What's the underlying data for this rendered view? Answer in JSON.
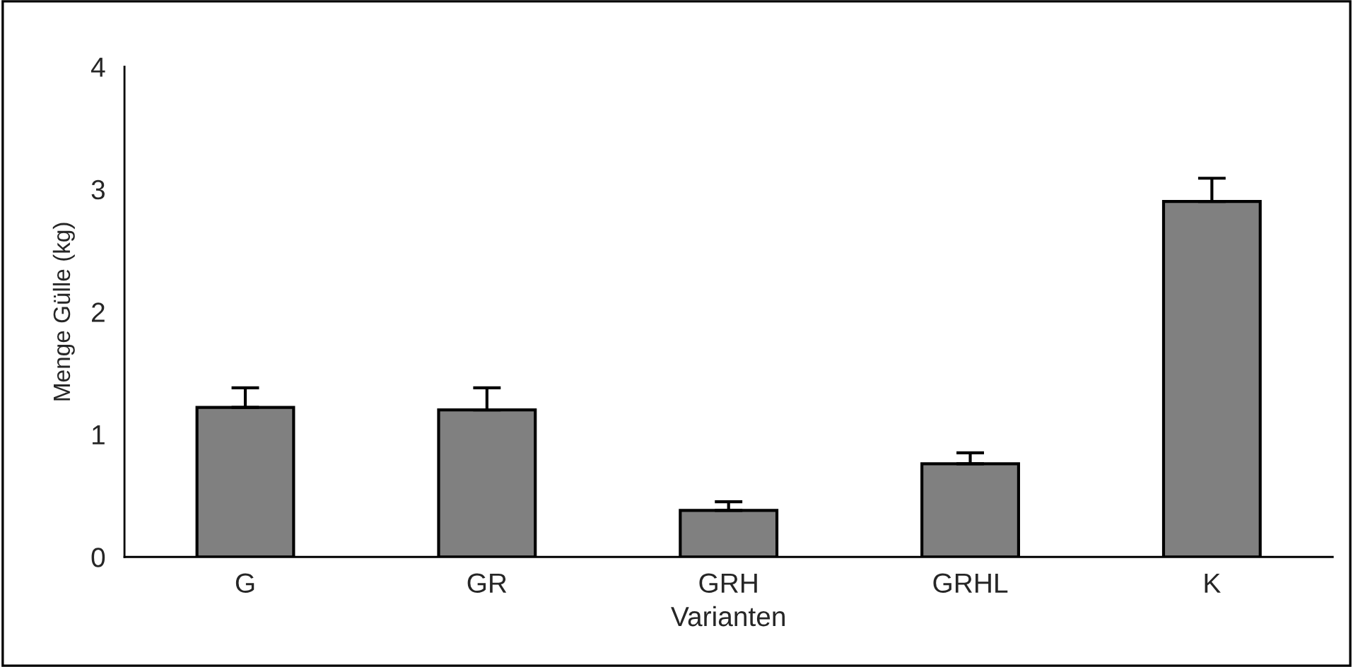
{
  "chart_data": {
    "type": "bar",
    "xlabel": "Varianten",
    "ylabel": "Menge Gülle (kg)",
    "categories": [
      "G",
      "GR",
      "GRH",
      "GRHL",
      "K"
    ],
    "values": [
      1.22,
      1.2,
      0.38,
      0.76,
      2.9
    ],
    "errors": [
      [
        1.22,
        1.38
      ],
      [
        1.2,
        1.38
      ],
      [
        0.38,
        0.45
      ],
      [
        0.76,
        0.85
      ],
      [
        2.9,
        3.09
      ]
    ],
    "color": "#808080",
    "ylim": [
      0,
      4
    ],
    "yticks": [
      0,
      1,
      2,
      3,
      4
    ],
    "grid": false,
    "legend": false
  }
}
